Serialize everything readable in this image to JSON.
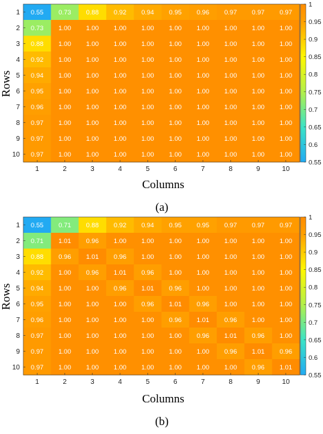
{
  "colors": {
    "scale_stops": [
      {
        "v": 0.55,
        "c": "#22aaf2"
      },
      {
        "v": 0.65,
        "c": "#3ce3c6"
      },
      {
        "v": 0.75,
        "c": "#b3f04a"
      },
      {
        "v": 0.85,
        "c": "#fff700"
      },
      {
        "v": 0.9,
        "c": "#ffcc00"
      },
      {
        "v": 0.95,
        "c": "#ffa100"
      },
      {
        "v": 1.01,
        "c": "#ff8c00"
      }
    ]
  },
  "chart_data": [
    {
      "type": "heatmap",
      "panel_label": "(a)",
      "xlabel": "Columns",
      "ylabel": "Rows",
      "x_ticks": [
        "1",
        "2",
        "3",
        "4",
        "5",
        "6",
        "7",
        "8",
        "9",
        "10"
      ],
      "y_ticks": [
        "1",
        "2",
        "3",
        "4",
        "5",
        "6",
        "7",
        "8",
        "9",
        "10"
      ],
      "colorbar_ticks": [
        "1",
        "0.95",
        "0.9",
        "0.85",
        "0.8",
        "0.75",
        "0.7",
        "0.65",
        "0.6",
        "0.55"
      ],
      "clim": [
        0.55,
        1.0
      ],
      "values": [
        [
          "0.55",
          "0.73",
          "0.88",
          "0.92",
          "0.94",
          "0.95",
          "0.96",
          "0.97",
          "0.97",
          "0.97"
        ],
        [
          "0.73",
          "1.00",
          "1.00",
          "1.00",
          "1.00",
          "1.00",
          "1.00",
          "1.00",
          "1.00",
          "1.00"
        ],
        [
          "0.88",
          "1.00",
          "1.00",
          "1.00",
          "1.00",
          "1.00",
          "1.00",
          "1.00",
          "1.00",
          "1.00"
        ],
        [
          "0.92",
          "1.00",
          "1.00",
          "1.00",
          "1.00",
          "1.00",
          "1.00",
          "1.00",
          "1.00",
          "1.00"
        ],
        [
          "0.94",
          "1.00",
          "1.00",
          "1.00",
          "1.00",
          "1.00",
          "1.00",
          "1.00",
          "1.00",
          "1.00"
        ],
        [
          "0.95",
          "1.00",
          "1.00",
          "1.00",
          "1.00",
          "1.00",
          "1.00",
          "1.00",
          "1.00",
          "1.00"
        ],
        [
          "0.96",
          "1.00",
          "1.00",
          "1.00",
          "1.00",
          "1.00",
          "1.00",
          "1.00",
          "1.00",
          "1.00"
        ],
        [
          "0.97",
          "1.00",
          "1.00",
          "1.00",
          "1.00",
          "1.00",
          "1.00",
          "1.00",
          "1.00",
          "1.00"
        ],
        [
          "0.97",
          "1.00",
          "1.00",
          "1.00",
          "1.00",
          "1.00",
          "1.00",
          "1.00",
          "1.00",
          "1.00"
        ],
        [
          "0.97",
          "1.00",
          "1.00",
          "1.00",
          "1.00",
          "1.00",
          "1.00",
          "1.00",
          "1.00",
          "1.00"
        ]
      ]
    },
    {
      "type": "heatmap",
      "panel_label": "(b)",
      "xlabel": "Columns",
      "ylabel": "Rows",
      "x_ticks": [
        "1",
        "2",
        "3",
        "4",
        "5",
        "6",
        "7",
        "8",
        "9",
        "10"
      ],
      "y_ticks": [
        "1",
        "2",
        "3",
        "4",
        "5",
        "6",
        "7",
        "8",
        "9",
        "10"
      ],
      "colorbar_ticks": [
        "1",
        "0.95",
        "0.9",
        "0.85",
        "0.8",
        "0.75",
        "0.7",
        "0.65",
        "0.6",
        "0.55"
      ],
      "clim": [
        0.55,
        1.0
      ],
      "values": [
        [
          "0.55",
          "0.71",
          "0.88",
          "0.92",
          "0.94",
          "0.95",
          "0.95",
          "0.97",
          "0.97",
          "0.97"
        ],
        [
          "0.71",
          "1.01",
          "0.96",
          "1.00",
          "1.00",
          "1.00",
          "1.00",
          "1.00",
          "1.00",
          "1.00"
        ],
        [
          "0.88",
          "0.96",
          "1.01",
          "0.96",
          "1.00",
          "1.00",
          "1.00",
          "1.00",
          "1.00",
          "1.00"
        ],
        [
          "0.92",
          "1.00",
          "0.96",
          "1.01",
          "0.96",
          "1.00",
          "1.00",
          "1.00",
          "1.00",
          "1.00"
        ],
        [
          "0.94",
          "1.00",
          "1.00",
          "0.96",
          "1.01",
          "0.96",
          "1.00",
          "1.00",
          "1.00",
          "1.00"
        ],
        [
          "0.95",
          "1.00",
          "1.00",
          "1.00",
          "0.96",
          "1.01",
          "0.96",
          "1.00",
          "1.00",
          "1.00"
        ],
        [
          "0.96",
          "1.00",
          "1.00",
          "1.00",
          "1.00",
          "0.96",
          "1.01",
          "0.96",
          "1.00",
          "1.00"
        ],
        [
          "0.97",
          "1.00",
          "1.00",
          "1.00",
          "1.00",
          "1.00",
          "0.96",
          "1.01",
          "0.96",
          "1.00"
        ],
        [
          "0.97",
          "1.00",
          "1.00",
          "1.00",
          "1.00",
          "1.00",
          "1.00",
          "0.96",
          "1.01",
          "0.96"
        ],
        [
          "0.97",
          "1.00",
          "1.00",
          "1.00",
          "1.00",
          "1.00",
          "1.00",
          "1.00",
          "0.96",
          "1.01"
        ]
      ]
    }
  ]
}
